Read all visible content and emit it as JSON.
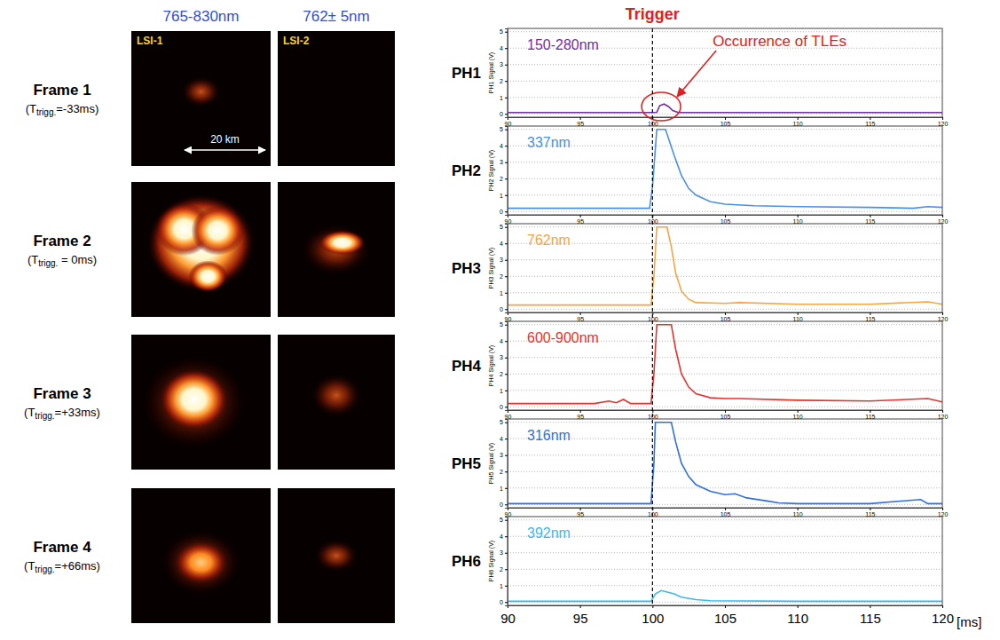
{
  "images": {
    "columns": [
      {
        "header": "765-830nm",
        "camera": "LSI-1"
      },
      {
        "header": "762± 5nm",
        "camera": "LSI-2"
      }
    ],
    "scale_label": "20 km",
    "frames": [
      {
        "label": "Frame 1",
        "time_open": "(T",
        "time_sub": "trigg.",
        "time_value": "=-33ms)"
      },
      {
        "label": "Frame 2",
        "time_open": "(T",
        "time_sub": "trigg.",
        "time_value": " = 0ms)"
      },
      {
        "label": "Frame 3",
        "time_open": "(T",
        "time_sub": "trigg.",
        "time_value": "=+33ms)"
      },
      {
        "label": "Frame 4",
        "time_open": "(T",
        "time_sub": "trigg.",
        "time_value": "=+66ms)"
      }
    ]
  },
  "trigger": {
    "label": "Trigger",
    "x": 100
  },
  "chart_data": [
    {
      "type": "line",
      "title": "PH1",
      "y_label": "PH1 Signal (V)",
      "x": [
        90,
        95,
        100,
        100.3,
        100.5,
        100.8,
        101.1,
        101.4,
        101.8,
        105,
        110,
        115,
        120
      ],
      "series": [
        {
          "name": "150-280nm",
          "color": "#7030a0",
          "values": [
            0.08,
            0.08,
            0.08,
            0.1,
            0.5,
            0.6,
            0.45,
            0.2,
            0.08,
            0.08,
            0.08,
            0.08,
            0.08
          ]
        }
      ],
      "xlim": [
        90,
        120
      ],
      "xticks": [
        90,
        95,
        100,
        105,
        110,
        115,
        120
      ],
      "ylim": [
        -0.2,
        5.2
      ],
      "yticks": [
        0,
        1,
        2,
        3,
        4,
        5
      ],
      "grid": true,
      "legend": "upper left",
      "annotations": [
        {
          "text": "Occurrence of TLEs",
          "x": 100.6,
          "y": 0.45
        }
      ]
    },
    {
      "type": "line",
      "title": "PH2",
      "y_label": "PH2 Signal (V)",
      "x": [
        90,
        95,
        99.8,
        100,
        100.3,
        100.9,
        101.2,
        101.5,
        102,
        102.5,
        103,
        104,
        105,
        107,
        110,
        115,
        118,
        119,
        120
      ],
      "series": [
        {
          "name": "337nm",
          "color": "#4a90e2",
          "values": [
            0.2,
            0.2,
            0.2,
            1.5,
            5,
            5,
            4.2,
            3.4,
            2.2,
            1.4,
            1.0,
            0.6,
            0.45,
            0.35,
            0.3,
            0.25,
            0.2,
            0.3,
            0.25
          ]
        }
      ],
      "xlim": [
        90,
        120
      ],
      "xticks": [
        90,
        95,
        100,
        105,
        110,
        115,
        120
      ],
      "ylim": [
        -0.2,
        5.2
      ],
      "yticks": [
        0,
        1,
        2,
        3,
        4,
        5
      ],
      "grid": true,
      "legend": "upper left"
    },
    {
      "type": "line",
      "title": "PH3",
      "y_label": "PH3 Signal (V)",
      "x": [
        90,
        95,
        99.9,
        100.1,
        100.3,
        101,
        101.3,
        101.6,
        102,
        102.5,
        103,
        105,
        106,
        110,
        115,
        119,
        120
      ],
      "series": [
        {
          "name": "762nm",
          "color": "#f4a444",
          "values": [
            0.25,
            0.25,
            0.25,
            2,
            5,
            5,
            3.8,
            2.2,
            1.1,
            0.6,
            0.4,
            0.35,
            0.4,
            0.3,
            0.3,
            0.45,
            0.3
          ]
        }
      ],
      "xlim": [
        90,
        120
      ],
      "xticks": [
        90,
        95,
        100,
        105,
        110,
        115,
        120
      ],
      "ylim": [
        -0.2,
        5.2
      ],
      "yticks": [
        0,
        1,
        2,
        3,
        4,
        5
      ],
      "grid": true,
      "legend": "upper left"
    },
    {
      "type": "line",
      "title": "PH4",
      "y_label": "PH4 Signal (V)",
      "x": [
        90,
        96,
        97,
        97.5,
        98,
        98.5,
        99.9,
        100.1,
        100.3,
        101.3,
        101.6,
        102,
        102.5,
        103,
        104,
        105,
        106,
        110,
        115,
        119,
        120
      ],
      "series": [
        {
          "name": "600-900nm",
          "color": "#e8312f",
          "values": [
            0.2,
            0.2,
            0.35,
            0.25,
            0.45,
            0.2,
            0.2,
            2,
            5,
            5,
            3.5,
            2,
            1.2,
            0.8,
            0.55,
            0.5,
            0.5,
            0.4,
            0.35,
            0.5,
            0.3
          ]
        }
      ],
      "xlim": [
        90,
        120
      ],
      "xticks": [
        90,
        95,
        100,
        105,
        110,
        115,
        120
      ],
      "ylim": [
        -0.2,
        5.2
      ],
      "yticks": [
        0,
        1,
        2,
        3,
        4,
        5
      ],
      "grid": true,
      "legend": "upper left"
    },
    {
      "type": "line",
      "title": "PH5",
      "y_label": "PH5 Signal (V)",
      "x": [
        90,
        95,
        99.9,
        100.1,
        100.2,
        101.3,
        101.6,
        102,
        102.5,
        103,
        104,
        105,
        105.7,
        106.5,
        108,
        108.7,
        110,
        115,
        118.5,
        119,
        120
      ],
      "series": [
        {
          "name": "316nm",
          "color": "#2f6fe0",
          "values": [
            0.05,
            0.05,
            0.05,
            2.5,
            5,
            5,
            3.8,
            2.5,
            1.7,
            1.2,
            0.8,
            0.6,
            0.65,
            0.4,
            0.2,
            0.1,
            0.05,
            0.05,
            0.3,
            0.05,
            0.05
          ]
        }
      ],
      "xlim": [
        90,
        120
      ],
      "xticks": [
        90,
        95,
        100,
        105,
        110,
        115,
        120
      ],
      "ylim": [
        -0.2,
        5.2
      ],
      "yticks": [
        0,
        1,
        2,
        3,
        4,
        5
      ],
      "grid": true,
      "legend": "upper left"
    },
    {
      "type": "line",
      "title": "PH6",
      "y_label": "PH6 Signal (V)",
      "x_label": "[ms]",
      "x": [
        90,
        95,
        99.9,
        100.2,
        100.6,
        101.5,
        102,
        103,
        104,
        110,
        120
      ],
      "series": [
        {
          "name": "392nm",
          "color": "#3db8ea",
          "values": [
            0.05,
            0.05,
            0.05,
            0.5,
            0.7,
            0.5,
            0.3,
            0.15,
            0.08,
            0.05,
            0.05
          ]
        }
      ],
      "xlim": [
        90,
        120
      ],
      "xticks": [
        90,
        95,
        100,
        105,
        110,
        115,
        120
      ],
      "ylim": [
        -0.2,
        5.2
      ],
      "yticks": [
        0,
        1,
        2,
        3,
        4,
        5
      ],
      "grid": true,
      "legend": "upper left"
    }
  ]
}
